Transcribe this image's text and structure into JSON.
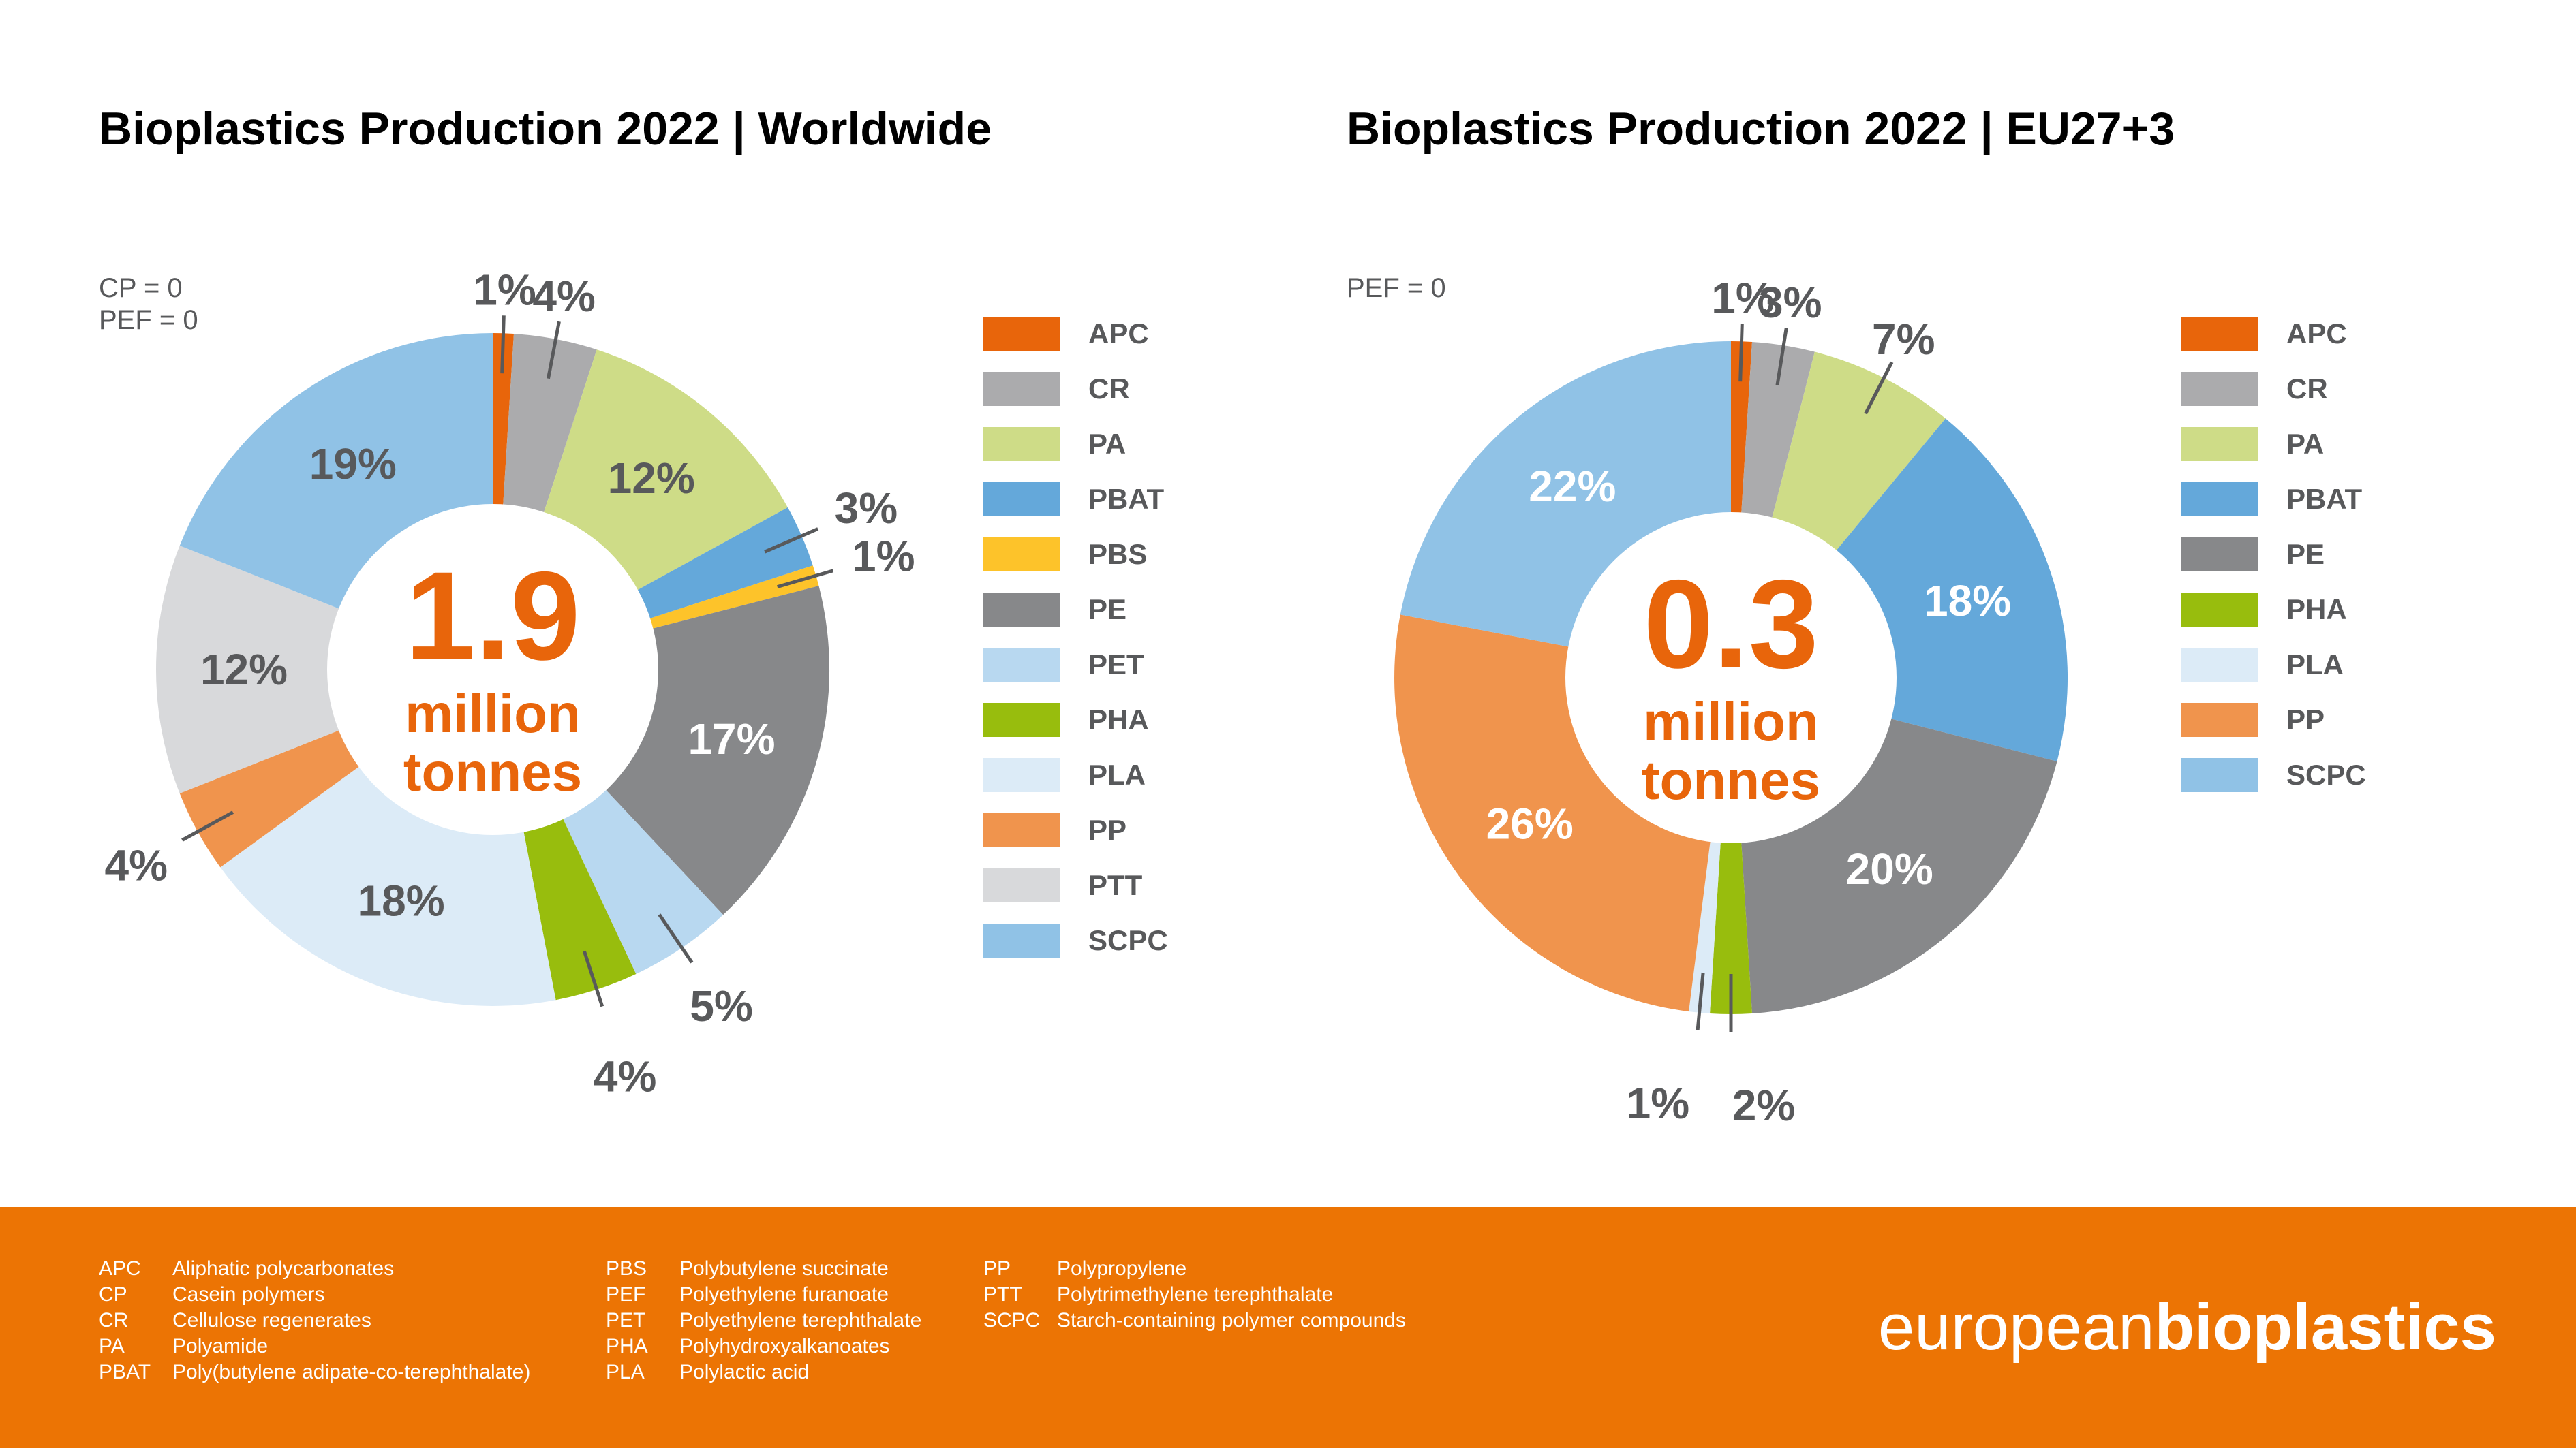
{
  "colors": {
    "accent_orange": "#e8650b",
    "footer_bg": "#ec7404",
    "text_dark": "#000000",
    "text_gray": "#58595b",
    "label_white": "#ffffff"
  },
  "charts": [
    {
      "title": "Bioplastics Production 2022 | Worldwide",
      "notes": [
        "CP = 0",
        "PEF = 0"
      ],
      "center": {
        "value": "1.9",
        "unit_line1": "million",
        "unit_line2": "tonnes"
      },
      "slices": [
        {
          "name": "APC",
          "pct": 1,
          "label": "1%",
          "color": "#e8650b",
          "placement": "out"
        },
        {
          "name": "CR",
          "pct": 4,
          "label": "4%",
          "color": "#ababad",
          "placement": "out"
        },
        {
          "name": "PA",
          "pct": 12,
          "label": "12%",
          "color": "#cedc87",
          "placement": "in",
          "label_color": "#58595b"
        },
        {
          "name": "PBAT",
          "pct": 3,
          "label": "3%",
          "color": "#64a8da",
          "placement": "out"
        },
        {
          "name": "PBS",
          "pct": 1,
          "label": "1%",
          "color": "#fdc32a",
          "placement": "out"
        },
        {
          "name": "PE",
          "pct": 17,
          "label": "17%",
          "color": "#87888a",
          "placement": "in",
          "label_color": "#ffffff"
        },
        {
          "name": "PET",
          "pct": 5,
          "label": "5%",
          "color": "#b8d8f0",
          "placement": "out"
        },
        {
          "name": "PHA",
          "pct": 4,
          "label": "4%",
          "color": "#98bd0d",
          "placement": "out"
        },
        {
          "name": "PLA",
          "pct": 18,
          "label": "18%",
          "color": "#dcebf7",
          "placement": "in",
          "label_color": "#58595b"
        },
        {
          "name": "PP",
          "pct": 4,
          "label": "4%",
          "color": "#f0944d",
          "placement": "out"
        },
        {
          "name": "PTT",
          "pct": 12,
          "label": "12%",
          "color": "#d8d9db",
          "placement": "in",
          "label_color": "#58595b"
        },
        {
          "name": "SCPC",
          "pct": 19,
          "label": "19%",
          "color": "#90c2e6",
          "placement": "in",
          "label_color": "#58595b"
        }
      ]
    },
    {
      "title": "Bioplastics Production 2022 | EU27+3",
      "notes": [
        "PEF = 0"
      ],
      "center": {
        "value": "0.3",
        "unit_line1": "million",
        "unit_line2": "tonnes"
      },
      "slices": [
        {
          "name": "APC",
          "pct": 1,
          "label": "1%",
          "color": "#e8650b",
          "placement": "out"
        },
        {
          "name": "CR",
          "pct": 3,
          "label": "3%",
          "color": "#ababad",
          "placement": "out"
        },
        {
          "name": "PA",
          "pct": 7,
          "label": "7%",
          "color": "#cedc87",
          "placement": "out"
        },
        {
          "name": "PBAT",
          "pct": 18,
          "label": "18%",
          "color": "#64a8da",
          "placement": "in",
          "label_color": "#ffffff"
        },
        {
          "name": "PE",
          "pct": 20,
          "label": "20%",
          "color": "#87888a",
          "placement": "in",
          "label_color": "#ffffff"
        },
        {
          "name": "PHA",
          "pct": 2,
          "label": "2%",
          "color": "#98bd0d",
          "placement": "out"
        },
        {
          "name": "PLA",
          "pct": 1,
          "label": "1%",
          "color": "#dcebf7",
          "placement": "out"
        },
        {
          "name": "PP",
          "pct": 26,
          "label": "26%",
          "color": "#f0944d",
          "placement": "in",
          "label_color": "#ffffff"
        },
        {
          "name": "SCPC",
          "pct": 22,
          "label": "22%",
          "color": "#90c2e6",
          "placement": "in",
          "label_color": "#ffffff"
        }
      ]
    }
  ],
  "footer": {
    "abbreviations": [
      {
        "abbr": "APC",
        "full": "Aliphatic polycarbonates"
      },
      {
        "abbr": "CP",
        "full": "Casein polymers"
      },
      {
        "abbr": "CR",
        "full": "Cellulose regenerates"
      },
      {
        "abbr": "PA",
        "full": "Polyamide"
      },
      {
        "abbr": "PBAT",
        "full": "Poly(butylene adipate-co-terephthalate)"
      },
      {
        "abbr": "PBS",
        "full": "Polybutylene succinate"
      },
      {
        "abbr": "PEF",
        "full": "Polyethylene furanoate"
      },
      {
        "abbr": "PET",
        "full": "Polyethylene terephthalate"
      },
      {
        "abbr": "PHA",
        "full": "Polyhydroxyalkanoates"
      },
      {
        "abbr": "PLA",
        "full": "Polylactic acid"
      },
      {
        "abbr": "PP",
        "full": "Polypropylene"
      },
      {
        "abbr": "PTT",
        "full": "Polytrimethylene terephthalate"
      },
      {
        "abbr": "SCPC",
        "full": "Starch-containing polymer compounds"
      }
    ],
    "logo": {
      "part1": "european",
      "part2": "bioplastics"
    }
  },
  "chart_data": [
    {
      "type": "pie",
      "title": "Bioplastics Production 2022 | Worldwide",
      "total": "1.9 million tonnes",
      "unit": "%",
      "categories": [
        "APC",
        "CR",
        "PA",
        "PBAT",
        "PBS",
        "PE",
        "PET",
        "PHA",
        "PLA",
        "PP",
        "PTT",
        "SCPC"
      ],
      "values": [
        1,
        4,
        12,
        3,
        1,
        17,
        5,
        4,
        18,
        4,
        12,
        19
      ],
      "annotations": [
        "CP = 0",
        "PEF = 0"
      ],
      "legend_position": "right"
    },
    {
      "type": "pie",
      "title": "Bioplastics Production 2022 | EU27+3",
      "total": "0.3 million tonnes",
      "unit": "%",
      "categories": [
        "APC",
        "CR",
        "PA",
        "PBAT",
        "PE",
        "PHA",
        "PLA",
        "PP",
        "SCPC"
      ],
      "values": [
        1,
        3,
        7,
        18,
        20,
        2,
        1,
        26,
        22
      ],
      "annotations": [
        "PEF = 0"
      ],
      "legend_position": "right"
    }
  ]
}
